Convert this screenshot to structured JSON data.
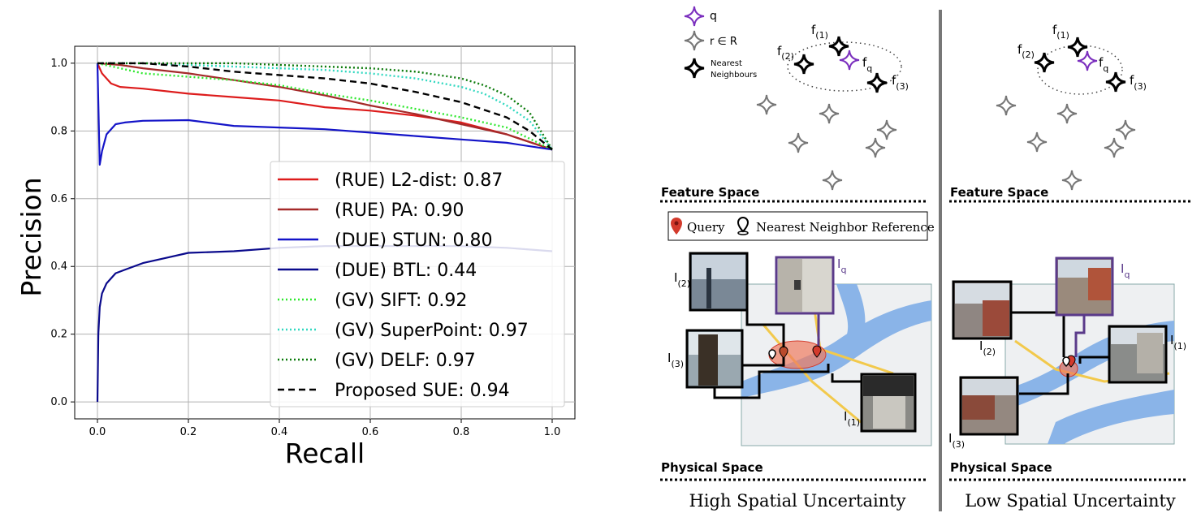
{
  "chart_data": {
    "type": "line",
    "xlabel": "Recall",
    "ylabel": "Precision",
    "xlim": [
      -0.05,
      1.05
    ],
    "ylim": [
      -0.05,
      1.05
    ],
    "xticks": [
      "0.0",
      "0.2",
      "0.4",
      "0.6",
      "0.8",
      "1.0"
    ],
    "yticks": [
      "0.0",
      "0.2",
      "0.4",
      "0.6",
      "0.8",
      "1.0"
    ],
    "grid": true,
    "legend_position": "bottom-right",
    "series": [
      {
        "name": "(RUE) L2-dist: 0.87",
        "color": "#dd1c1c",
        "dash": "solid",
        "x": [
          0.0,
          0.01,
          0.03,
          0.05,
          0.1,
          0.2,
          0.3,
          0.4,
          0.5,
          0.6,
          0.7,
          0.8,
          0.9,
          1.0
        ],
        "y": [
          1.0,
          0.97,
          0.94,
          0.93,
          0.925,
          0.91,
          0.9,
          0.89,
          0.87,
          0.86,
          0.845,
          0.825,
          0.79,
          0.745
        ]
      },
      {
        "name": "(RUE) PA: 0.90",
        "color": "#a52a2a",
        "dash": "solid",
        "x": [
          0.0,
          0.05,
          0.1,
          0.2,
          0.3,
          0.4,
          0.5,
          0.6,
          0.7,
          0.8,
          0.9,
          1.0
        ],
        "y": [
          1.0,
          0.995,
          0.985,
          0.97,
          0.95,
          0.93,
          0.905,
          0.875,
          0.85,
          0.82,
          0.79,
          0.745
        ]
      },
      {
        "name": "(DUE) STUN: 0.80",
        "color": "#1414c8",
        "dash": "solid",
        "x": [
          0.0,
          0.005,
          0.01,
          0.02,
          0.04,
          0.06,
          0.1,
          0.2,
          0.3,
          0.4,
          0.5,
          0.6,
          0.7,
          0.8,
          0.9,
          1.0
        ],
        "y": [
          1.0,
          0.7,
          0.74,
          0.79,
          0.82,
          0.825,
          0.83,
          0.832,
          0.815,
          0.81,
          0.805,
          0.795,
          0.785,
          0.775,
          0.765,
          0.745
        ]
      },
      {
        "name": "(DUE) BTL: 0.44",
        "color": "#0a0a8c",
        "dash": "solid",
        "x": [
          0.0,
          0.002,
          0.005,
          0.01,
          0.02,
          0.04,
          0.06,
          0.1,
          0.15,
          0.2,
          0.3,
          0.4,
          0.5,
          0.6,
          0.7,
          0.8,
          0.9,
          1.0
        ],
        "y": [
          0.0,
          0.2,
          0.28,
          0.32,
          0.35,
          0.38,
          0.39,
          0.41,
          0.425,
          0.44,
          0.445,
          0.455,
          0.46,
          0.46,
          0.46,
          0.46,
          0.455,
          0.445
        ]
      },
      {
        "name": "(GV) SIFT: 0.92",
        "color": "#2ee82e",
        "dash": "dotted",
        "x": [
          0.0,
          0.05,
          0.1,
          0.2,
          0.3,
          0.4,
          0.5,
          0.6,
          0.7,
          0.8,
          0.9,
          1.0
        ],
        "y": [
          1.0,
          0.985,
          0.97,
          0.96,
          0.95,
          0.935,
          0.91,
          0.89,
          0.865,
          0.84,
          0.81,
          0.745
        ]
      },
      {
        "name": "(GV) SuperPoint: 0.97",
        "color": "#30d8c0",
        "dash": "dotted",
        "x": [
          0.0,
          0.1,
          0.2,
          0.3,
          0.4,
          0.5,
          0.6,
          0.7,
          0.8,
          0.85,
          0.9,
          0.95,
          1.0
        ],
        "y": [
          1.0,
          1.0,
          0.995,
          0.99,
          0.985,
          0.98,
          0.97,
          0.955,
          0.93,
          0.91,
          0.875,
          0.83,
          0.745
        ]
      },
      {
        "name": "(GV) DELF: 0.97",
        "color": "#0a7a0a",
        "dash": "dotted",
        "x": [
          0.0,
          0.1,
          0.2,
          0.3,
          0.4,
          0.5,
          0.6,
          0.7,
          0.8,
          0.85,
          0.9,
          0.95,
          1.0
        ],
        "y": [
          1.0,
          1.0,
          1.0,
          1.0,
          0.995,
          0.99,
          0.985,
          0.975,
          0.955,
          0.935,
          0.905,
          0.855,
          0.745
        ]
      },
      {
        "name": "Proposed SUE: 0.94",
        "color": "#000000",
        "dash": "dashed",
        "x": [
          0.0,
          0.1,
          0.2,
          0.3,
          0.4,
          0.5,
          0.6,
          0.7,
          0.8,
          0.9,
          0.95,
          1.0
        ],
        "y": [
          1.0,
          1.0,
          0.99,
          0.975,
          0.965,
          0.955,
          0.94,
          0.915,
          0.885,
          0.84,
          0.8,
          0.745
        ]
      }
    ]
  },
  "diagram": {
    "legend": {
      "query_label": "q",
      "reference_label": "r ∈ R",
      "nn_label_line1": "Nearest",
      "nn_label_line2": "Neighbours"
    },
    "feature_labels": {
      "f": "f",
      "sub1": "(1)",
      "sub2": "(2)",
      "sub3": "(3)",
      "subq": "q"
    },
    "image_labels": {
      "I": "I",
      "sub1": "(1)",
      "sub2": "(2)",
      "sub3": "(3)",
      "subq": "q"
    },
    "feature_space_label": "Feature Space",
    "physical_space_label": "Physical Space",
    "map_legend": {
      "query": "Query",
      "nn_reference": "Nearest Neighbor Reference"
    },
    "left_caption": "High Spatial Uncertainty",
    "right_caption": "Low Spatial Uncertainty",
    "colors": {
      "query_purple": "#7b2fbe",
      "photo_border_purple": "#5a3a8a",
      "water": "#8ab4e8",
      "land": "#eef0f2",
      "pin_red": "#d33a2c"
    }
  }
}
